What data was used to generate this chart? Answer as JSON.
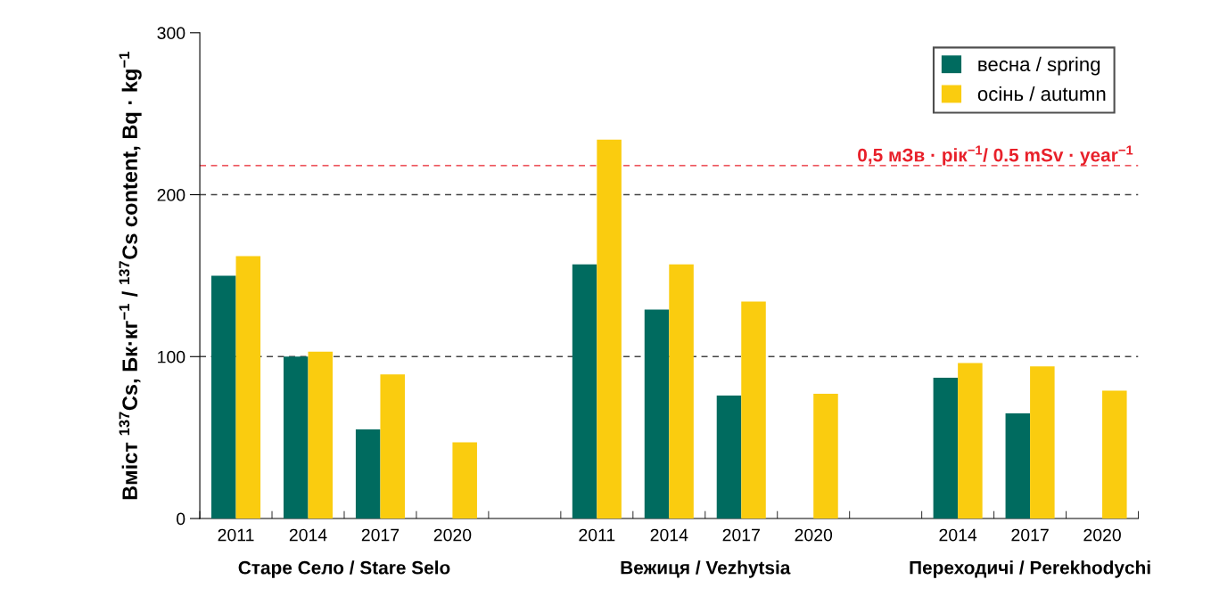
{
  "chart_data": {
    "type": "bar",
    "ylabel": "Вміст $^{137}$Cs, Бк·кг$^{−1}$ / $^{137}$Cs content, Bq · kg$^{−1}$",
    "categories": [
      "2011",
      "2014",
      "2017",
      "2020",
      null,
      "2011",
      "2014",
      "2017",
      "2020",
      null,
      "2014",
      "2017",
      "2020"
    ],
    "series": [
      {
        "name": "весна / spring",
        "color": "#006b5f",
        "values": [
          150,
          100,
          55,
          null,
          null,
          157,
          129,
          76,
          null,
          null,
          87,
          65,
          null
        ]
      },
      {
        "name": "осінь / autumn",
        "color": "#facc0f",
        "values": [
          162,
          103,
          89,
          47,
          null,
          234,
          157,
          134,
          77,
          null,
          96,
          94,
          79
        ]
      }
    ],
    "ylim": [
      0,
      300
    ],
    "yticks": [
      0,
      100,
      200,
      300
    ],
    "ref_lines": [
      {
        "axis": "y",
        "value": 218,
        "label": "0,5 мЗв · рік$^{−1}$/ 0.5 mSv · year$^{−1}$",
        "color": "#e8202a",
        "line_style": "dashed"
      },
      {
        "axis": "y",
        "value": 100,
        "label": null,
        "color": "#444444",
        "line_style": "dashed"
      },
      {
        "axis": "y",
        "value": 200,
        "label": null,
        "color": "#444444",
        "line_style": "dashed"
      }
    ],
    "annotations": [
      "Старе Село / Stare Selo",
      "Вежиця / Vezhytsia",
      "Переходичі / Perekhodychi"
    ],
    "legend": "top right"
  }
}
